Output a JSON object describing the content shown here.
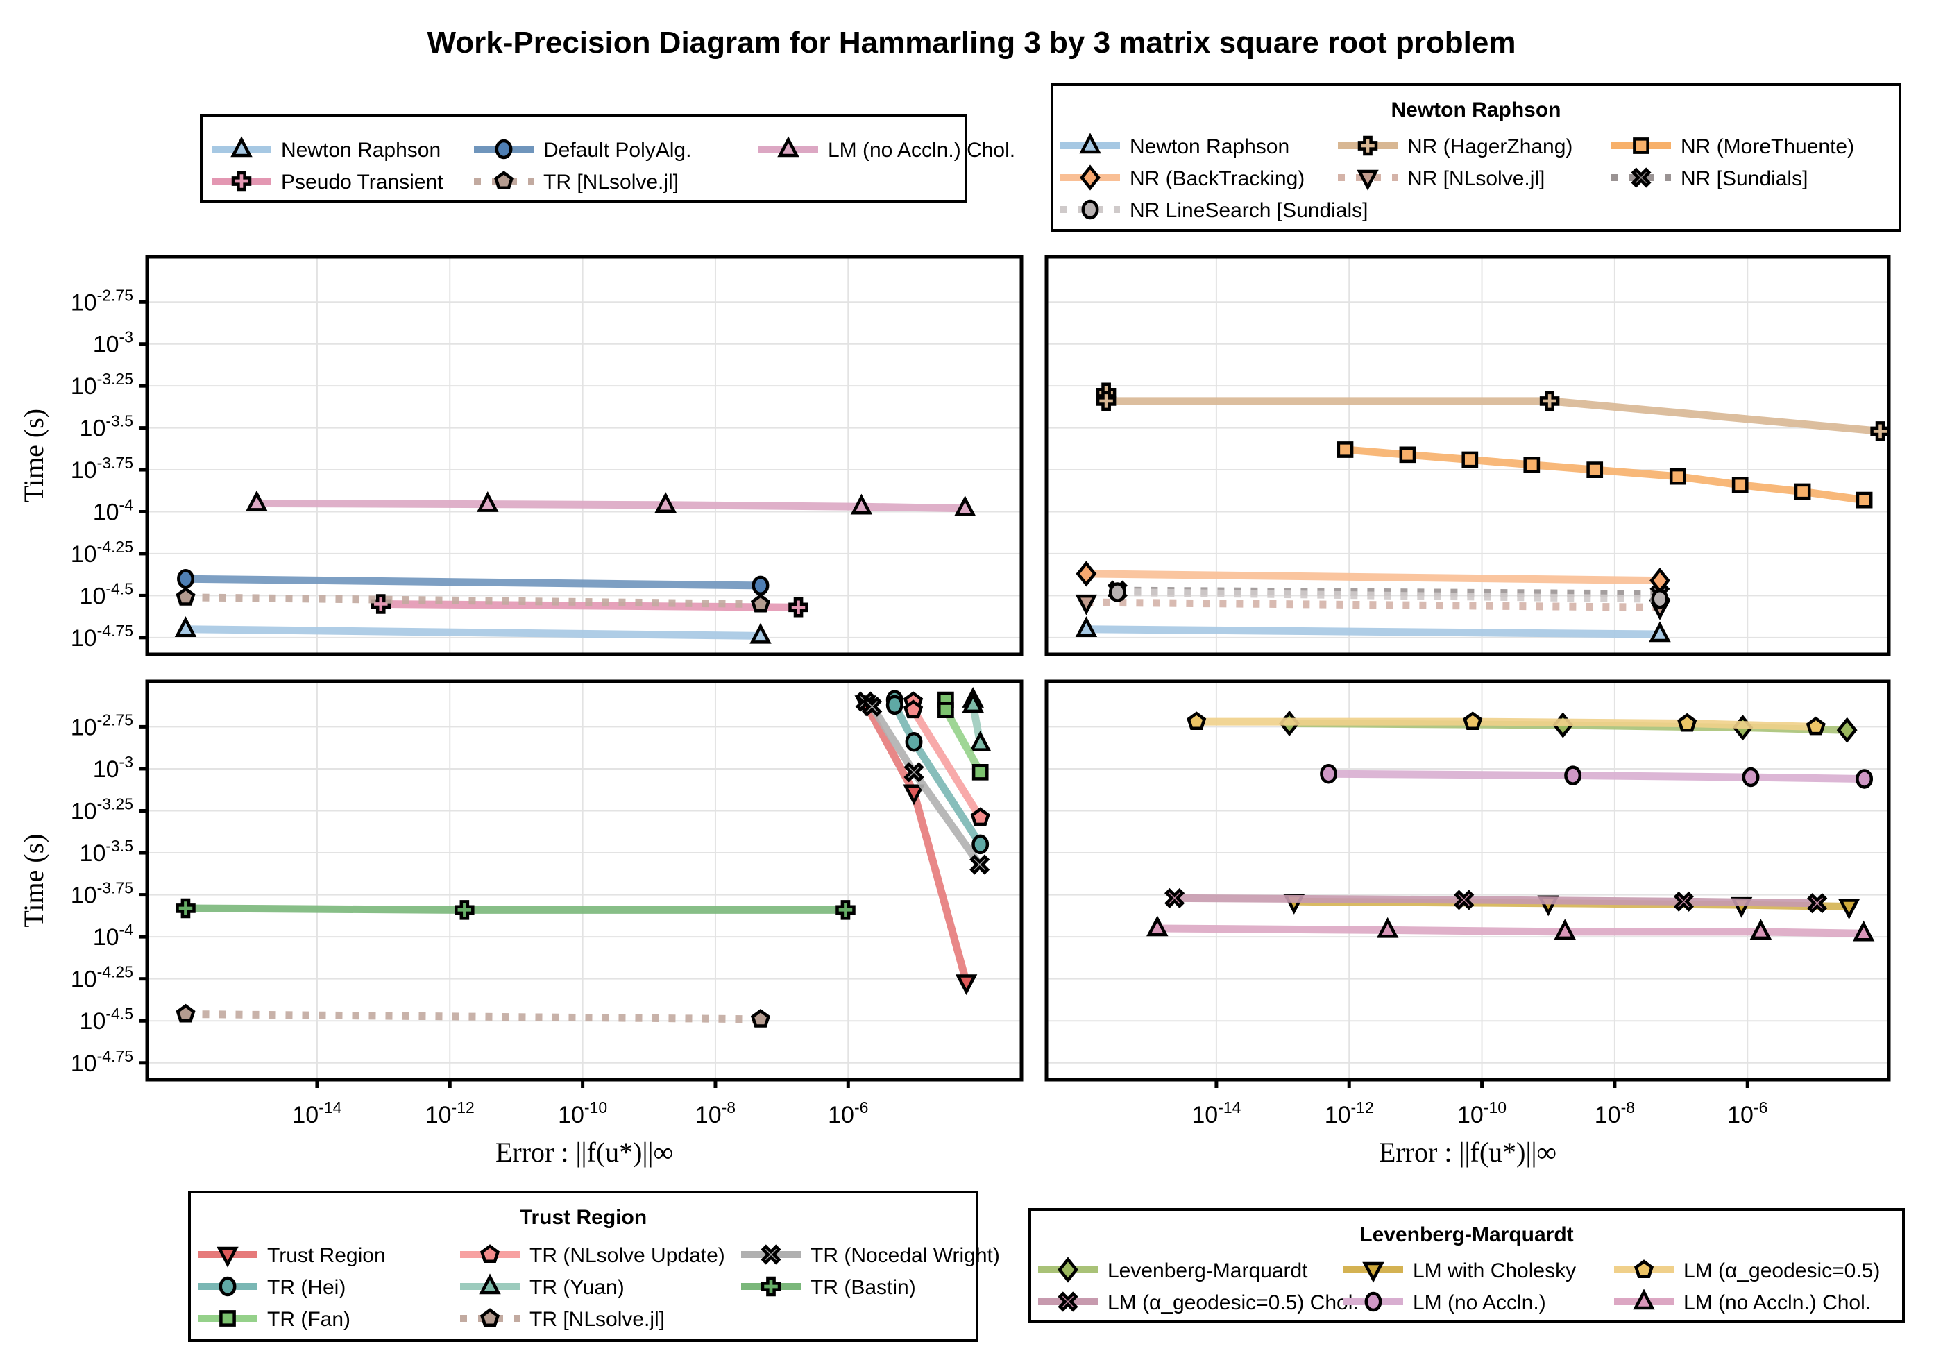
{
  "chart_data": {
    "type": "line",
    "title": "Work-Precision Diagram for Hammarling 3 by 3 matrix square root problem",
    "xlabel": "Error : ||f(u*)||∞",
    "ylabel": "Time (s)",
    "xscale": "log10",
    "yscale": "log10",
    "xticks": [
      -14,
      -12,
      -10,
      -8,
      -6
    ],
    "xtick_labels": [
      "10^-14",
      "10^-12",
      "10^-10",
      "10^-8",
      "10^-6"
    ],
    "yticks": [
      -2.75,
      -3,
      -3.25,
      -3.5,
      -3.75,
      -4,
      -4.25,
      -4.5,
      -4.75
    ],
    "ytick_labels": [
      "10^-2.75",
      "10^-3",
      "10^-3.25",
      "10^-3.5",
      "10^-3.75",
      "10^-4",
      "10^-4.25",
      "10^-4.5",
      "10^-4.75"
    ],
    "grid": true,
    "note": "x and y values are log10 of error and time (seconds)",
    "panels": [
      {
        "id": "top-left",
        "legend_title": "",
        "legend_placement": "above",
        "legend_columns": 3,
        "xlim_log10": [
          -16.56,
          -3.39
        ],
        "ylim_log10": [
          -4.85,
          -2.48
        ],
        "series": [
          {
            "name": "Newton Raphson",
            "color": "#a6c8e3",
            "marker": "triangle-up",
            "style": "solid",
            "x": [
              -15.98,
              -7.32
            ],
            "y": [
              -4.7,
              -4.74
            ]
          },
          {
            "name": "Default PolyAlg.",
            "color": "#6f95bc",
            "markerFill": "#4f7fb4",
            "marker": "circle",
            "style": "solid",
            "x": [
              -15.98,
              -7.32
            ],
            "y": [
              -4.4,
              -4.44
            ]
          },
          {
            "name": "LM (no Accln.) Chol.",
            "color": "#dca7c3",
            "marker": "triangle-up",
            "style": "solid",
            "x": [
              -14.91,
              -11.43,
              -8.75,
              -5.8,
              -4.24
            ],
            "y": [
              -3.95,
              -3.955,
              -3.96,
              -3.97,
              -3.98
            ]
          },
          {
            "name": "Pseudo Transient",
            "color": "#e397b2",
            "marker": "cross",
            "style": "solid",
            "x": [
              -13.04,
              -6.75
            ],
            "y": [
              -4.55,
              -4.57
            ]
          },
          {
            "name": "TR [NLsolve.jl]",
            "color": "#c2aaa0",
            "markerFill": "#b49b8f",
            "marker": "pentagon",
            "style": "dotted",
            "x": [
              -15.98,
              -7.32
            ],
            "y": [
              -4.51,
              -4.55
            ]
          }
        ]
      },
      {
        "id": "top-right",
        "legend_title": "Newton Raphson",
        "legend_placement": "above",
        "legend_columns": 3,
        "xlim_log10": [
          -16.56,
          -3.87
        ],
        "ylim_log10": [
          -4.85,
          -2.48
        ],
        "series": [
          {
            "name": "Newton Raphson",
            "color": "#a6c8e3",
            "marker": "triangle-up",
            "style": "solid",
            "x": [
              -15.96,
              -7.32
            ],
            "y": [
              -4.7,
              -4.73
            ]
          },
          {
            "name": "NR (HagerZhang)",
            "color": "#d8b793",
            "marker": "cross",
            "style": "solid",
            "x": [
              -15.66,
              -15.66,
              -8.98,
              -4.0
            ],
            "y": [
              -3.29,
              -3.34,
              -3.34,
              -3.52
            ]
          },
          {
            "name": "NR (MoreThuente)",
            "color": "#f7b06a",
            "marker": "square",
            "style": "solid",
            "x": [
              -12.06,
              -11.12,
              -10.18,
              -9.25,
              -8.3,
              -7.05,
              -6.11,
              -5.17,
              -4.24
            ],
            "y": [
              -3.63,
              -3.66,
              -3.69,
              -3.72,
              -3.75,
              -3.79,
              -3.84,
              -3.88,
              -3.93
            ]
          },
          {
            "name": "NR (BackTracking)",
            "color": "#f9bf95",
            "markerFill": "#f7a870",
            "marker": "diamond",
            "style": "solid",
            "x": [
              -15.96,
              -7.32
            ],
            "y": [
              -4.37,
              -4.41
            ]
          },
          {
            "name": "NR [NLsolve.jl]",
            "color": "#d4b3a8",
            "markerFill": "#c29c8e",
            "marker": "triangle-down",
            "style": "dotted",
            "x": [
              -15.96,
              -7.32
            ],
            "y": [
              -4.54,
              -4.57
            ]
          },
          {
            "name": "NR [Sundials]",
            "color": "#9a9393",
            "markerFill": "#8c8686",
            "marker": "x",
            "style": "dotted",
            "x": [
              -15.49,
              -7.32
            ],
            "y": [
              -4.47,
              -4.49
            ]
          },
          {
            "name": "NR LineSearch [Sundials]",
            "color": "#cfcaca",
            "markerFill": "#b8b2b2",
            "marker": "circle",
            "style": "dotted",
            "x": [
              -15.49,
              -7.32
            ],
            "y": [
              -4.48,
              -4.52
            ]
          }
        ]
      },
      {
        "id": "bottom-left",
        "legend_title": "Trust Region",
        "legend_placement": "below",
        "legend_columns": 3,
        "xlim_log10": [
          -16.56,
          -3.39
        ],
        "ylim_log10": [
          -4.85,
          -2.48
        ],
        "series": [
          {
            "name": "Trust Region",
            "color": "#e67a7a",
            "markerFill": "#e05a5a",
            "marker": "triangle-down",
            "style": "solid",
            "x": [
              -5.74,
              -5.01,
              -4.22
            ],
            "y": [
              -2.61,
              -3.14,
              -4.27
            ]
          },
          {
            "name": "TR (NLsolve Update)",
            "color": "#f7a1a1",
            "markerFill": "#f48b8b",
            "marker": "pentagon",
            "style": "solid",
            "x": [
              -5.02,
              -5.02,
              -4.01
            ],
            "y": [
              -2.6,
              -2.65,
              -3.29
            ]
          },
          {
            "name": "TR (Nocedal Wright)",
            "color": "#b0b0b0",
            "markerFill": "#a8a8a8",
            "marker": "x",
            "style": "solid",
            "x": [
              -5.74,
              -5.64,
              -5.01,
              -4.02
            ],
            "y": [
              -2.6,
              -2.63,
              -3.02,
              -3.57
            ]
          },
          {
            "name": "TR (Hei)",
            "color": "#7ab7b4",
            "markerFill": "#5fa9a5",
            "marker": "circle",
            "style": "solid",
            "x": [
              -5.3,
              -5.3,
              -5.01,
              -4.01
            ],
            "y": [
              -2.59,
              -2.62,
              -2.84,
              -3.45
            ]
          },
          {
            "name": "TR (Yuan)",
            "color": "#9ccbbd",
            "markerFill": "#7dbaa8",
            "marker": "triangle-up",
            "style": "solid",
            "x": [
              -4.12,
              -4.12,
              -4.01
            ],
            "y": [
              -2.59,
              -2.62,
              -2.85
            ]
          },
          {
            "name": "TR (Bastin)",
            "color": "#7ab77a",
            "markerFill": "#66ad66",
            "marker": "cross",
            "style": "solid",
            "x": [
              -15.98,
              -11.78,
              -6.04
            ],
            "y": [
              -3.83,
              -3.84,
              -3.84
            ]
          },
          {
            "name": "TR (Fan)",
            "color": "#95d18a",
            "markerFill": "#7cc36f",
            "marker": "square",
            "style": "solid",
            "x": [
              -4.53,
              -4.53,
              -4.01
            ],
            "y": [
              -2.59,
              -2.65,
              -3.02
            ]
          },
          {
            "name": "TR [NLsolve.jl]",
            "color": "#c2aaa0",
            "markerFill": "#b49b8f",
            "marker": "pentagon",
            "style": "dotted",
            "x": [
              -15.98,
              -7.32
            ],
            "y": [
              -4.46,
              -4.49
            ]
          }
        ]
      },
      {
        "id": "bottom-right",
        "legend_title": "Levenberg-Marquardt",
        "legend_placement": "below",
        "legend_columns": 3,
        "xlim_log10": [
          -16.56,
          -3.87
        ],
        "ylim_log10": [
          -4.85,
          -2.48
        ],
        "series": [
          {
            "name": "Levenberg-Marquardt",
            "color": "#a9c277",
            "markerFill": "#9bb85f",
            "marker": "diamond",
            "style": "solid",
            "x": [
              -12.9,
              -8.78,
              -6.07,
              -4.5
            ],
            "y": [
              -2.73,
              -2.74,
              -2.755,
              -2.77
            ]
          },
          {
            "name": "LM with Cholesky",
            "color": "#d4b252",
            "markerFill": "#cfa93a",
            "marker": "triangle-down",
            "style": "solid",
            "x": [
              -12.83,
              -9.0,
              -6.09,
              -4.47
            ],
            "y": [
              -3.79,
              -3.8,
              -3.81,
              -3.82
            ]
          },
          {
            "name": "LM (α_geodesic=0.5)",
            "color": "#f0d08a",
            "markerFill": "#ecc466",
            "marker": "pentagon",
            "style": "solid",
            "x": [
              -14.3,
              -10.14,
              -6.91,
              -4.97
            ],
            "y": [
              -2.72,
              -2.72,
              -2.73,
              -2.75
            ]
          },
          {
            "name": "LM (α_geodesic=0.5) Chol.",
            "color": "#c79aae",
            "markerFill": "#c289a2",
            "marker": "x",
            "style": "solid",
            "x": [
              -14.63,
              -10.27,
              -6.96,
              -4.95
            ],
            "y": [
              -3.77,
              -3.78,
              -3.79,
              -3.8
            ]
          },
          {
            "name": "LM (no Accln.)",
            "color": "#d8aed0",
            "markerFill": "#cf98c5",
            "marker": "circle",
            "style": "solid",
            "x": [
              -12.31,
              -8.63,
              -5.95,
              -4.24
            ],
            "y": [
              -3.03,
              -3.04,
              -3.05,
              -3.06
            ]
          },
          {
            "name": "LM (no Accln.) Chol.",
            "color": "#dca7c3",
            "markerFill": "#d896b8",
            "marker": "triangle-up",
            "style": "solid",
            "x": [
              -14.89,
              -11.42,
              -8.75,
              -5.8,
              -4.25
            ],
            "y": [
              -3.95,
              -3.96,
              -3.97,
              -3.97,
              -3.98
            ]
          }
        ]
      }
    ]
  }
}
